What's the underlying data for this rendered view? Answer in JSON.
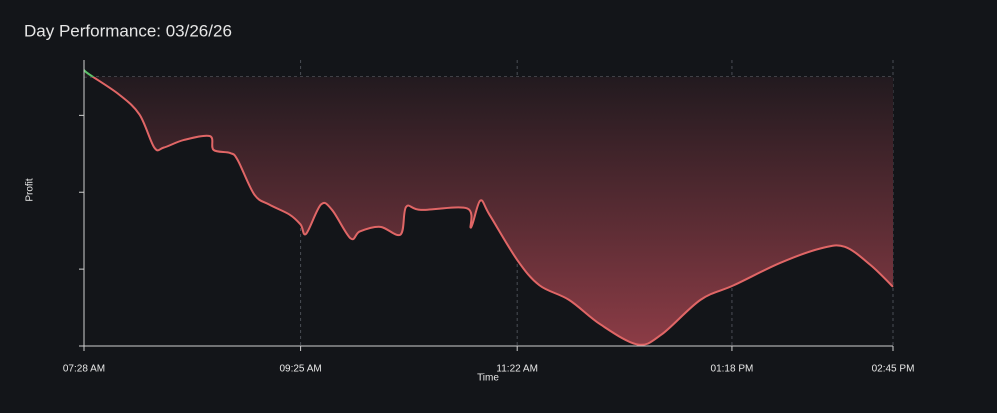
{
  "chart_data": {
    "type": "line",
    "title": "Day Performance: 03/26/26",
    "x_label": "Time",
    "y_label": "Profit",
    "x": [
      448,
      451,
      467,
      478,
      486,
      491,
      502,
      516,
      518,
      527,
      531,
      540,
      548,
      559,
      565,
      568,
      576,
      582,
      592,
      597,
      608,
      619,
      622,
      630,
      655,
      657,
      662,
      667,
      682,
      694,
      710,
      727,
      747,
      760,
      781,
      799,
      824,
      846,
      859,
      873,
      885
    ],
    "series": [
      {
        "name": "Profit",
        "color": "#e06666",
        "positive_color": "#5cc26a",
        "values": [
          9,
          3,
          -23,
          -49,
          -92,
          -92,
          -82,
          -77,
          -95,
          -99,
          -108,
          -153,
          -166,
          -179,
          -192,
          -204,
          -166,
          -173,
          -210,
          -201,
          -195,
          -205,
          -169,
          -173,
          -171,
          -196,
          -161,
          -179,
          -238,
          -271,
          -290,
          -322,
          -348,
          -335,
          -290,
          -271,
          -242,
          -223,
          -221,
          -245,
          -273
        ]
      }
    ],
    "xlim": [
      448,
      885
    ],
    "xticks": [
      {
        "value": 448,
        "label": "07:28 AM"
      },
      {
        "value": 565,
        "label": "09:25 AM"
      },
      {
        "value": 682,
        "label": "11:22 AM"
      },
      {
        "value": 798,
        "label": "01:18 PM"
      },
      {
        "value": 885,
        "label": "02:45 PM"
      }
    ],
    "ylim": [
      -350,
      22
    ],
    "yticks": [
      -50,
      -150,
      -250,
      -350
    ],
    "baseline": 0,
    "grid": true
  }
}
